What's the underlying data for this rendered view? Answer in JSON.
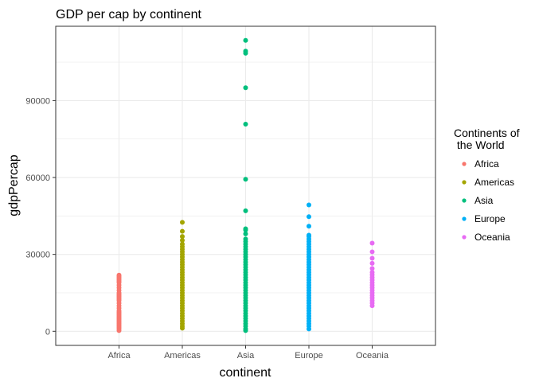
{
  "chart_data": {
    "type": "scatter",
    "title": "GDP per cap by continent",
    "xlabel": "continent",
    "ylabel": "gdpPercap",
    "categories": [
      "Africa",
      "Americas",
      "Asia",
      "Europe",
      "Oceania"
    ],
    "y_ticks": [
      0,
      30000,
      60000,
      90000
    ],
    "y_tick_labels": [
      "0",
      "30000",
      "60000",
      "90000"
    ],
    "ylim": [
      -5500,
      119000
    ],
    "grid": true,
    "legend": {
      "title_lines": [
        "Continents of",
        " the World"
      ],
      "position": "right"
    },
    "series": [
      {
        "name": "Africa",
        "color": "#F8766D",
        "values": [
          300,
          1000,
          1500,
          2000,
          2500,
          3000,
          3500,
          4000,
          4500,
          5000,
          5500,
          6000,
          6500,
          7000,
          7500,
          8000,
          9000,
          10000,
          11000,
          12000,
          12500,
          13000,
          13500,
          14000,
          14500,
          15000,
          16000,
          17000,
          18000,
          19000,
          19500,
          20000,
          20500,
          21000,
          21500,
          21900
        ]
      },
      {
        "name": "Americas",
        "color": "#A3A500",
        "values": [
          1200,
          2000,
          3000,
          4000,
          5000,
          6000,
          7000,
          8000,
          9000,
          10000,
          11000,
          12000,
          13000,
          14000,
          15000,
          16000,
          17000,
          18000,
          19000,
          20000,
          21000,
          22000,
          23000,
          24000,
          25000,
          26000,
          27000,
          28000,
          29000,
          30000,
          31000,
          32000,
          33000,
          34000,
          35500,
          37000,
          39000,
          42500
        ]
      },
      {
        "name": "Asia",
        "color": "#00BF7D",
        "values": [
          300,
          1000,
          2000,
          3000,
          4000,
          5000,
          6000,
          7000,
          8000,
          9000,
          10000,
          11000,
          12000,
          13000,
          14000,
          15000,
          16000,
          17000,
          18000,
          19000,
          20000,
          21000,
          22000,
          23000,
          24000,
          25000,
          26000,
          27000,
          28000,
          29000,
          30000,
          31000,
          32000,
          33000,
          34000,
          35000,
          36000,
          38000,
          39500,
          40000,
          47000,
          59300,
          80800,
          95000,
          108500,
          109300,
          113500
        ]
      },
      {
        "name": "Europe",
        "color": "#00B0F6",
        "values": [
          900,
          2000,
          3000,
          4000,
          5000,
          6000,
          7000,
          8000,
          9000,
          10000,
          11000,
          12000,
          13000,
          14000,
          15000,
          16000,
          17000,
          18000,
          19000,
          20000,
          21000,
          22000,
          23000,
          24000,
          25000,
          26000,
          27000,
          28000,
          29000,
          30000,
          31000,
          32000,
          33000,
          34000,
          35000,
          36000,
          37000,
          37500,
          41000,
          44700,
          49300
        ]
      },
      {
        "name": "Oceania",
        "color": "#E76BF3",
        "values": [
          10000,
          11000,
          12000,
          13000,
          14000,
          15000,
          16000,
          17000,
          18000,
          19000,
          20000,
          21000,
          22000,
          23000,
          24500,
          26500,
          28500,
          31000,
          34400
        ]
      }
    ]
  }
}
